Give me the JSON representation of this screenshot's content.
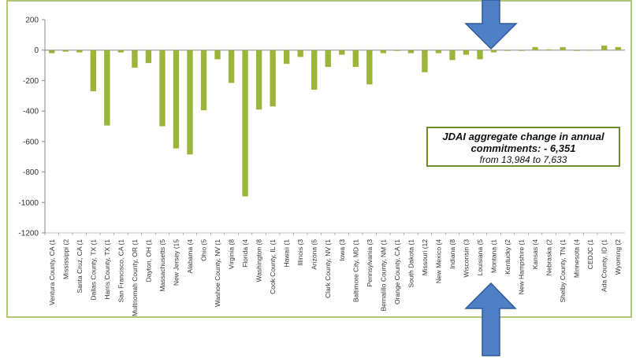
{
  "colors": {
    "bar": "#9bb53a",
    "arrow": "#4f7fc4",
    "arrow_stroke": "#2e5b9a",
    "frame": "#b3c77a",
    "axis": "#888888"
  },
  "annotation": {
    "line1": "JDAI aggregate change in annual",
    "line2": "commitments: - 6,351",
    "line3": "from 13,984 to 7,633"
  },
  "icons": {
    "top_arrow": "down-arrow-icon",
    "bottom_arrow": "up-arrow-icon"
  },
  "chart_data": {
    "type": "bar",
    "ylim": [
      -1200,
      200
    ],
    "yticks": [
      200,
      0,
      -200,
      -400,
      -600,
      -800,
      -1000,
      -1200
    ],
    "ytick_labels": [
      "200",
      "0",
      "-200",
      "-400",
      "-600",
      "-800",
      "-1000",
      "-1200"
    ],
    "grid": false,
    "categories": [
      "Ventura County, CA (1",
      "Mississippi (2",
      "Santa Cruz, CA (1",
      "Dallas County, TX (1",
      "Harris County, TX (1",
      "San Francisco, CA (1",
      "Multnomah County, OR (1",
      "Dayton, OH (1",
      "Massachusetts (5",
      "New Jersey (15",
      "Alabama (4",
      "Ohio (5",
      "Washoe County, NV (1",
      "Virginia (8",
      "Florida (4",
      "Washington (8",
      "Cook County, IL (1",
      "Hawaii (1",
      "Illinois (3",
      "Arizona (5",
      "Clark County, NV (1",
      "Iowa (3",
      "Baltimore City, MD (1",
      "Pennsylvania (3",
      "Bernalillo County, NM (1",
      "Orange County, CA (1",
      "South Dakota (1",
      "Missouri (12",
      "New Mexico (4",
      "Indiana (8",
      "Wisconsin (3",
      "Louisiana (5",
      "Montana (1",
      "Kentucky (2",
      "New Hampshire (1",
      "Kansas (4",
      "Nebraska (2",
      "Shelby County, TN (1",
      "Minnesota (4",
      "CEDJC (1",
      "Ada County, ID (1",
      "Wyoming (2"
    ],
    "values": [
      -20,
      -10,
      -15,
      -270,
      -495,
      -15,
      -115,
      -85,
      -500,
      -645,
      -685,
      -395,
      -60,
      -215,
      -960,
      -390,
      -370,
      -90,
      -45,
      -260,
      -110,
      -30,
      -110,
      -225,
      -20,
      -5,
      -20,
      -145,
      -20,
      -65,
      -30,
      -60,
      -15,
      -5,
      -5,
      20,
      5,
      20,
      -5,
      0,
      30,
      20
    ]
  }
}
